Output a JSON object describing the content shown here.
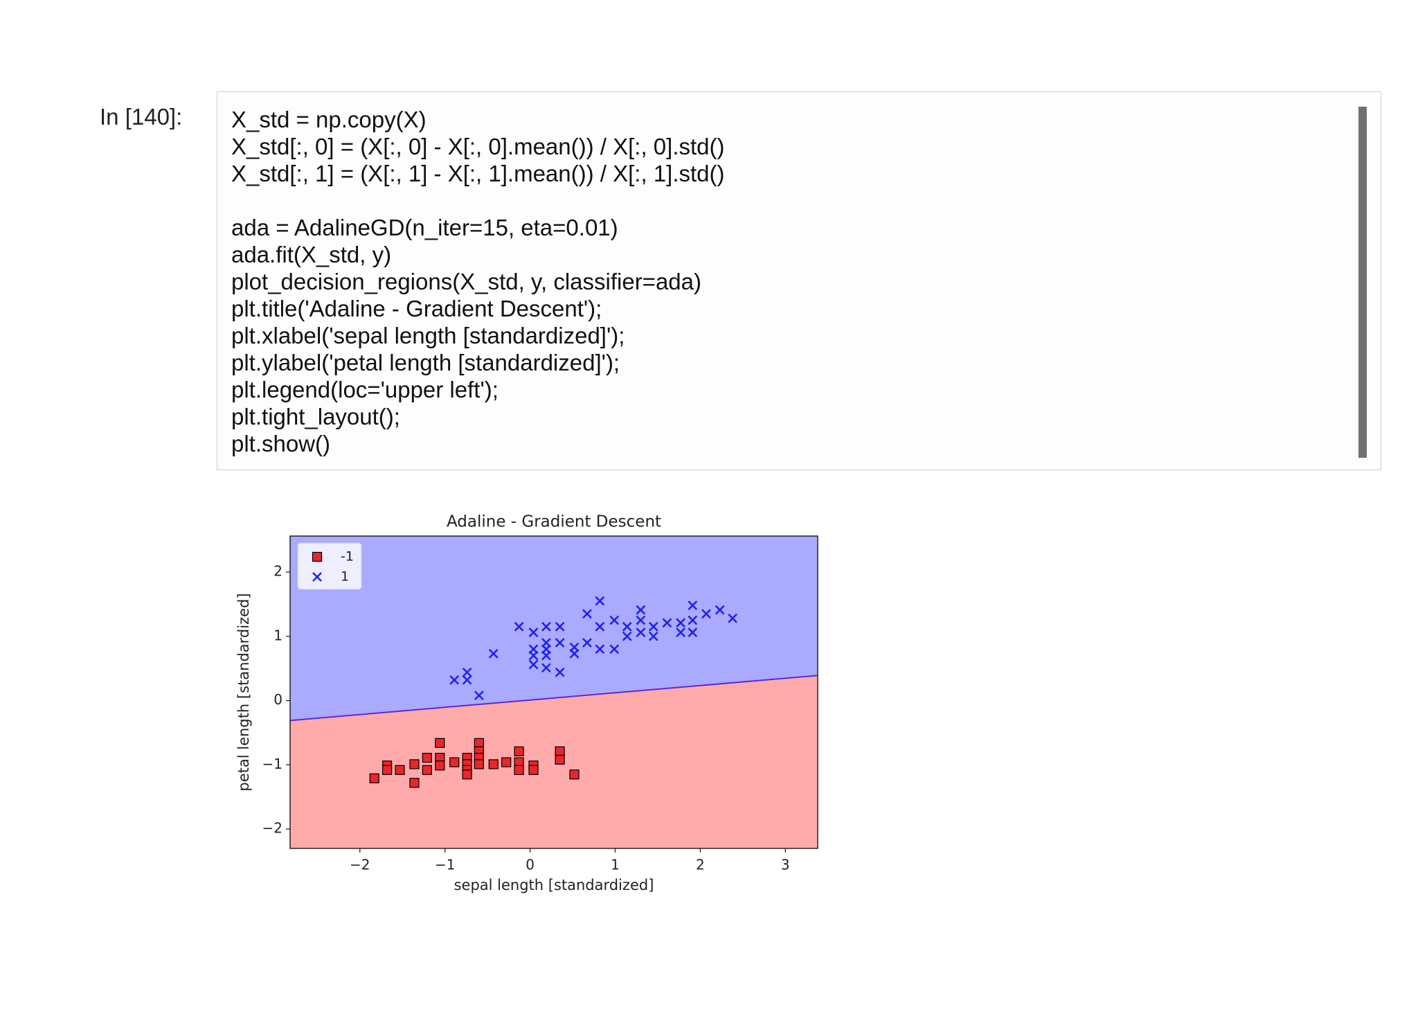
{
  "prompt": "In [140]:",
  "code_blocks": [
    [
      "X_std = np.copy(X)",
      "X_std[:, 0] = (X[:, 0] - X[:, 0].mean()) / X[:, 0].std()",
      "X_std[:, 1] = (X[:, 1] - X[:, 1].mean()) / X[:, 1].std()"
    ],
    [
      "ada = AdalineGD(n_iter=15, eta=0.01)",
      "ada.fit(X_std, y)",
      "plot_decision_regions(X_std, y, classifier=ada)",
      "plt.title('Adaline - Gradient Descent');",
      "plt.xlabel('sepal length [standardized]');",
      "plt.ylabel('petal length [standardized]');",
      "plt.legend(loc='upper left');",
      "plt.tight_layout();",
      "plt.show()"
    ]
  ],
  "chart_data": {
    "type": "scatter",
    "title": "Adaline - Gradient Descent",
    "xlabel": "sepal length [standardized]",
    "ylabel": "petal length [standardized]",
    "xlim": [
      -2.82,
      3.38
    ],
    "ylim": [
      -2.3,
      2.56
    ],
    "xticks": [
      {
        "value": -2,
        "label": "−2"
      },
      {
        "value": -1,
        "label": "−1"
      },
      0,
      1,
      2,
      3
    ],
    "yticks": [
      {
        "value": -2,
        "label": "−2"
      },
      {
        "value": -1,
        "label": "−1"
      },
      0,
      1,
      2
    ],
    "legend": "upper left",
    "region_colors": [
      "#ffaaaa",
      "#aaaaff"
    ],
    "boundary": {
      "x": [
        -2.82,
        3.38
      ],
      "y": [
        -0.31,
        0.39
      ],
      "color": "#5a2ad8"
    },
    "series": [
      {
        "name": "-1",
        "color": "#e8262b",
        "marker": "s",
        "x": [
          -1.83,
          -1.68,
          -1.68,
          -1.53,
          -1.36,
          -1.36,
          -1.21,
          -1.21,
          -1.06,
          -1.06,
          -1.06,
          -0.89,
          -0.74,
          -0.74,
          -0.74,
          -0.74,
          -0.6,
          -0.6,
          -0.6,
          -0.6,
          -0.43,
          -0.28,
          -0.13,
          -0.13,
          -0.13,
          0.04,
          0.04,
          0.35,
          0.35,
          0.52
        ],
        "values": [
          -1.21,
          -1.01,
          -1.08,
          -1.08,
          -0.99,
          -1.28,
          -0.89,
          -1.08,
          -0.66,
          -0.89,
          -1.01,
          -0.96,
          -0.89,
          -0.99,
          -1.08,
          -1.15,
          -0.66,
          -0.79,
          -0.89,
          -0.99,
          -0.99,
          -0.96,
          -0.79,
          -0.96,
          -1.08,
          -1.01,
          -1.08,
          -0.79,
          -0.92,
          -1.15
        ]
      },
      {
        "name": "1",
        "color": "#2222ee",
        "marker": "x",
        "x": [
          -0.89,
          -0.74,
          -0.74,
          -0.6,
          -0.43,
          -0.13,
          0.04,
          0.04,
          0.04,
          0.04,
          0.19,
          0.19,
          0.19,
          0.19,
          0.19,
          0.35,
          0.35,
          0.35,
          0.52,
          0.52,
          0.67,
          0.67,
          0.82,
          0.82,
          0.82,
          0.99,
          0.99,
          1.14,
          1.14,
          1.3,
          1.3,
          1.3,
          1.45,
          1.45,
          1.61,
          1.77,
          1.77,
          1.91,
          1.91,
          1.91,
          2.07,
          2.23,
          2.38
        ],
        "values": [
          0.32,
          0.44,
          0.32,
          0.08,
          0.73,
          1.15,
          1.06,
          0.8,
          0.7,
          0.56,
          1.15,
          0.9,
          0.8,
          0.7,
          0.51,
          1.15,
          0.9,
          0.44,
          0.83,
          0.73,
          0.9,
          1.35,
          1.55,
          1.15,
          0.8,
          1.25,
          0.8,
          1.15,
          1.0,
          1.41,
          1.25,
          1.06,
          1.15,
          1.0,
          1.21,
          1.21,
          1.06,
          1.48,
          1.25,
          1.06,
          1.35,
          1.41,
          1.28
        ]
      }
    ]
  }
}
